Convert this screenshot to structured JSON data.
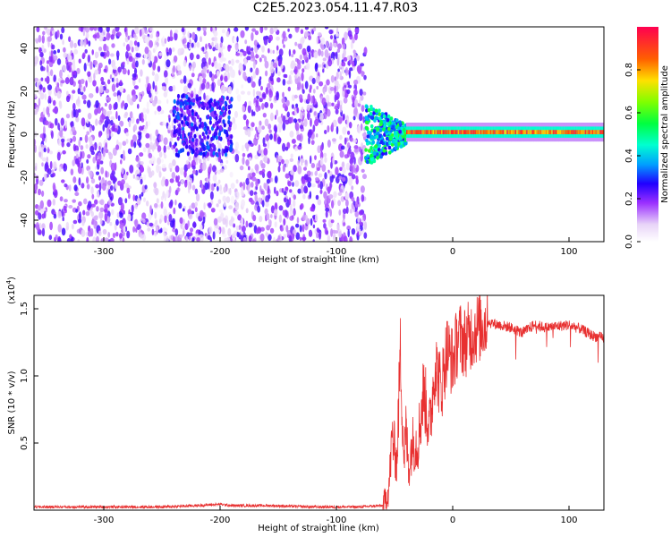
{
  "title": "C2E5.2023.054.11.47.R03",
  "colors": {
    "line": "#e83030",
    "axis": "#000000",
    "spectrogram_background": "#ffffff",
    "colormap": [
      "#ffffff",
      "#e8d4f8",
      "#9b30ff",
      "#4b00ff",
      "#0030ff",
      "#00c8ff",
      "#00ff90",
      "#40ff00",
      "#c8ff00",
      "#ffc800",
      "#ff4000",
      "#ff0050"
    ]
  },
  "chart_data": [
    {
      "type": "heatmap",
      "title": "",
      "xlabel": "Height of straight line (km)",
      "ylabel": "Frequency (Hz)",
      "xlim": [
        -360,
        130
      ],
      "ylim": [
        -50,
        50
      ],
      "x_ticks": [
        "-300",
        "-200",
        "-100",
        "0",
        "100"
      ],
      "x_tick_values": [
        -300,
        -200,
        -100,
        0,
        100
      ],
      "y_ticks": [
        "-40",
        "-20",
        "0",
        "20",
        "40"
      ],
      "y_tick_values": [
        -40,
        -20,
        0,
        20,
        40
      ],
      "colorbar": {
        "label": "Normalized spectral amplitude",
        "range": [
          0,
          1
        ],
        "ticks": [
          "0.0",
          "0.2",
          "0.4",
          "0.6",
          "0.8"
        ],
        "tick_values": [
          0.0,
          0.2,
          0.4,
          0.6,
          0.8
        ]
      },
      "features": [
        {
          "x_range": [
            -360,
            -75
          ],
          "freq_range": [
            -50,
            50
          ],
          "amplitude": 0.12,
          "description": "broadband noise"
        },
        {
          "x_range": [
            -240,
            -190
          ],
          "freq_range": [
            -10,
            20
          ],
          "amplitude": 0.2
        },
        {
          "x_range": [
            -75,
            -40
          ],
          "freq_range": [
            -15,
            10
          ],
          "amplitude": 0.45
        },
        {
          "x_range": [
            -40,
            130
          ],
          "freq_center": 1,
          "freq_halfwidth": 2,
          "amplitude": 0.85
        }
      ]
    },
    {
      "type": "line",
      "title": "",
      "xlabel": "Height of straight line (km)",
      "ylabel": "SNR (10 * v/v)",
      "y_multiplier_label": "(x10",
      "y_multiplier_exponent": "4",
      "xlim": [
        -360,
        130
      ],
      "ylim": [
        0,
        1.6
      ],
      "x_ticks": [
        "-300",
        "-200",
        "-100",
        "0",
        "100"
      ],
      "x_tick_values": [
        -300,
        -200,
        -100,
        0,
        100
      ],
      "y_ticks": [
        "0.5",
        "1.0",
        "1.5"
      ],
      "y_tick_values": [
        0.5,
        1.0,
        1.5
      ],
      "series": [
        {
          "x": [
            -360,
            -300,
            -250,
            -220,
            -200,
            -190,
            -160,
            -120,
            -100,
            -80,
            -60,
            -55,
            -52,
            -48,
            -45,
            -42,
            -40,
            -38,
            -35,
            -30,
            -25,
            -20,
            -15,
            -10,
            -5,
            0,
            5,
            10,
            15,
            20,
            30,
            40,
            50,
            60,
            70,
            80,
            90,
            100,
            110,
            120,
            130
          ],
          "values": [
            0.02,
            0.02,
            0.02,
            0.03,
            0.04,
            0.03,
            0.03,
            0.02,
            0.02,
            0.02,
            0.03,
            0.15,
            0.55,
            0.35,
            1.2,
            0.4,
            0.6,
            0.3,
            0.5,
            0.5,
            0.9,
            0.6,
            1.1,
            0.9,
            1.2,
            1.1,
            1.3,
            1.25,
            1.3,
            1.35,
            1.4,
            1.38,
            1.36,
            1.32,
            1.38,
            1.36,
            1.37,
            1.38,
            1.35,
            1.3,
            1.28
          ]
        }
      ]
    }
  ]
}
